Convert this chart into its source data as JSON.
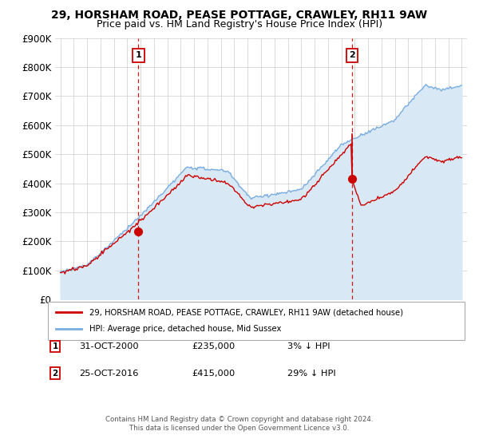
{
  "title": "29, HORSHAM ROAD, PEASE POTTAGE, CRAWLEY, RH11 9AW",
  "subtitle": "Price paid vs. HM Land Registry's House Price Index (HPI)",
  "ylim": [
    0,
    900000
  ],
  "yticks": [
    0,
    100000,
    200000,
    300000,
    400000,
    500000,
    600000,
    700000,
    800000,
    900000
  ],
  "ytick_labels": [
    "£0",
    "£100K",
    "£200K",
    "£300K",
    "£400K",
    "£500K",
    "£600K",
    "£700K",
    "£800K",
    "£900K"
  ],
  "xlim_start": 1994.6,
  "xlim_end": 2025.4,
  "sale1_x": 2000.83,
  "sale1_y": 235000,
  "sale1_label": "31-OCT-2000",
  "sale1_price": "£235,000",
  "sale1_hpi": "3% ↓ HPI",
  "sale2_x": 2016.81,
  "sale2_y": 415000,
  "sale2_label": "25-OCT-2016",
  "sale2_price": "£415,000",
  "sale2_hpi": "29% ↓ HPI",
  "line_color_red": "#cc0000",
  "line_color_blue": "#7aade0",
  "fill_color_blue": "#d8e8f5",
  "vline_color": "#cc0000",
  "background_color": "#ffffff",
  "grid_color": "#cccccc",
  "legend_label_red": "29, HORSHAM ROAD, PEASE POTTAGE, CRAWLEY, RH11 9AW (detached house)",
  "legend_label_blue": "HPI: Average price, detached house, Mid Sussex",
  "footer1": "Contains HM Land Registry data © Crown copyright and database right 2024.",
  "footer2": "This data is licensed under the Open Government Licence v3.0.",
  "title_fontsize": 10,
  "subtitle_fontsize": 9
}
